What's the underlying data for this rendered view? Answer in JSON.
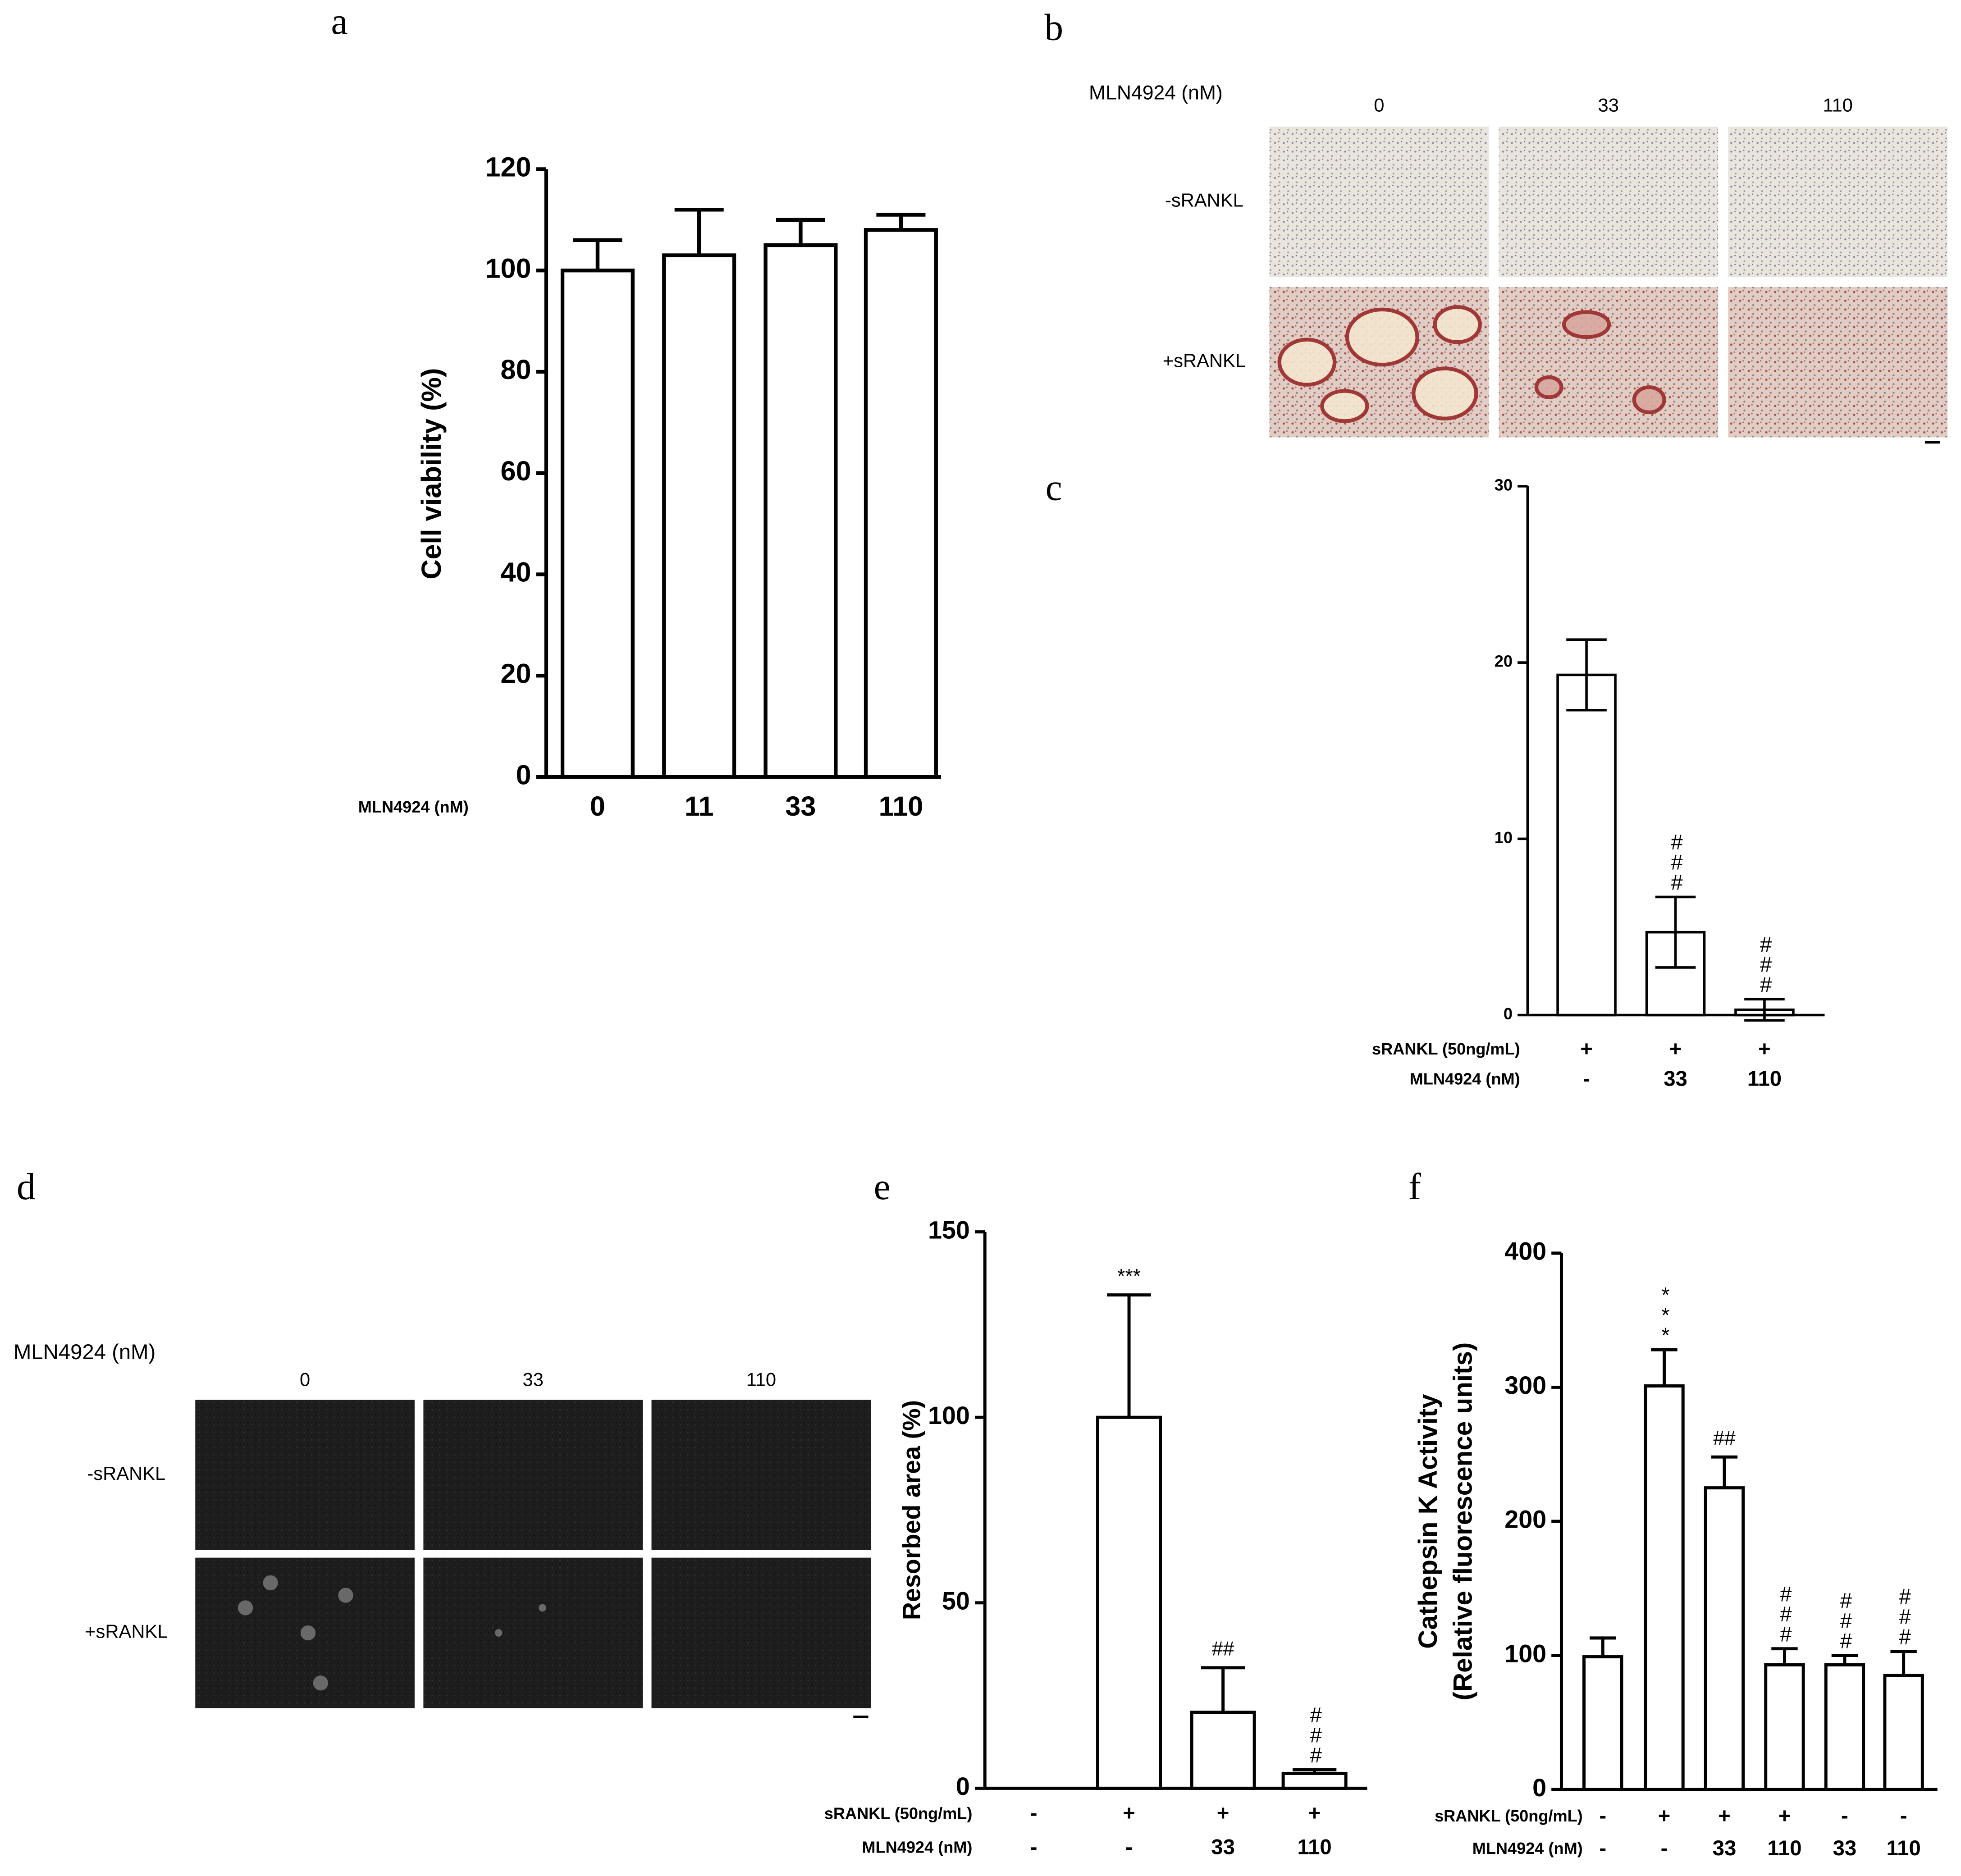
{
  "chart_data": [
    {
      "panel": "a",
      "type": "bar",
      "ylabel": "Cell viability (%)",
      "xlabel": "MLN4924 (nM)",
      "categories": [
        "0",
        "11",
        "33",
        "110"
      ],
      "values": [
        100,
        103,
        105,
        108
      ],
      "errors": [
        6,
        9,
        5,
        3
      ],
      "color": "#ffffff",
      "ylim": [
        0,
        120
      ],
      "yticks": [
        0,
        20,
        40,
        60,
        80,
        100,
        120
      ]
    },
    {
      "panel": "c",
      "type": "bar",
      "conditions": [
        {
          "label": "sRANKL (50ng/mL)",
          "values": [
            "+",
            "+",
            "+"
          ]
        },
        {
          "label": "MLN4924 (nM)",
          "values": [
            "-",
            "33",
            "110"
          ]
        }
      ],
      "values": [
        19.3,
        4.7,
        0.3
      ],
      "errors": [
        2,
        2,
        0.6
      ],
      "annotations": [
        null,
        "###",
        "###"
      ],
      "color": "#ffffff",
      "ylim": [
        0,
        30
      ],
      "yticks": [
        0,
        10,
        20,
        30
      ]
    },
    {
      "panel": "e",
      "type": "bar",
      "ylabel": "Resorbed area (%)",
      "conditions": [
        {
          "label": "sRANKL (50ng/mL)",
          "values": [
            "-",
            "+",
            "+",
            "+"
          ]
        },
        {
          "label": "MLN4924 (nM)",
          "values": [
            "-",
            "-",
            "33",
            "110"
          ]
        }
      ],
      "values": [
        0,
        100,
        20.5,
        4
      ],
      "errors": [
        null,
        33,
        12,
        1
      ],
      "annotations": [
        null,
        "***",
        "##",
        "###"
      ],
      "color": "#ffffff",
      "ylim": [
        0,
        150
      ],
      "yticks": [
        0,
        50,
        100,
        150
      ]
    },
    {
      "panel": "f",
      "type": "bar",
      "ylabel": [
        "Cathepsin K Activity",
        "(Relative fluorescence units)"
      ],
      "conditions": [
        {
          "label": "sRANKL (50ng/mL)",
          "values": [
            "-",
            "+",
            "+",
            "+",
            "-",
            "-"
          ]
        },
        {
          "label": "MLN4924 (nM)",
          "values": [
            "-",
            "-",
            "33",
            "110",
            "33",
            "110"
          ]
        }
      ],
      "values": [
        99,
        301,
        225,
        93,
        93,
        85
      ],
      "errors": [
        14,
        27,
        23,
        12,
        7,
        18
      ],
      "annotations": [
        null,
        "***",
        "##",
        "###",
        "###",
        "###"
      ],
      "color": "#ffffff",
      "ylim": [
        0,
        400
      ],
      "yticks": [
        0,
        100,
        200,
        300,
        400
      ]
    }
  ],
  "micrographs": [
    {
      "panel": "b",
      "header": "MLN4924 (nM)",
      "columns": [
        "0",
        "33",
        "110"
      ],
      "rows": [
        "-sRANKL",
        "+sRANKL"
      ]
    },
    {
      "panel": "d",
      "header": "MLN4924 (nM)",
      "columns": [
        "0",
        "33",
        "110"
      ],
      "rows": [
        "-sRANKL",
        "+sRANKL"
      ]
    }
  ]
}
